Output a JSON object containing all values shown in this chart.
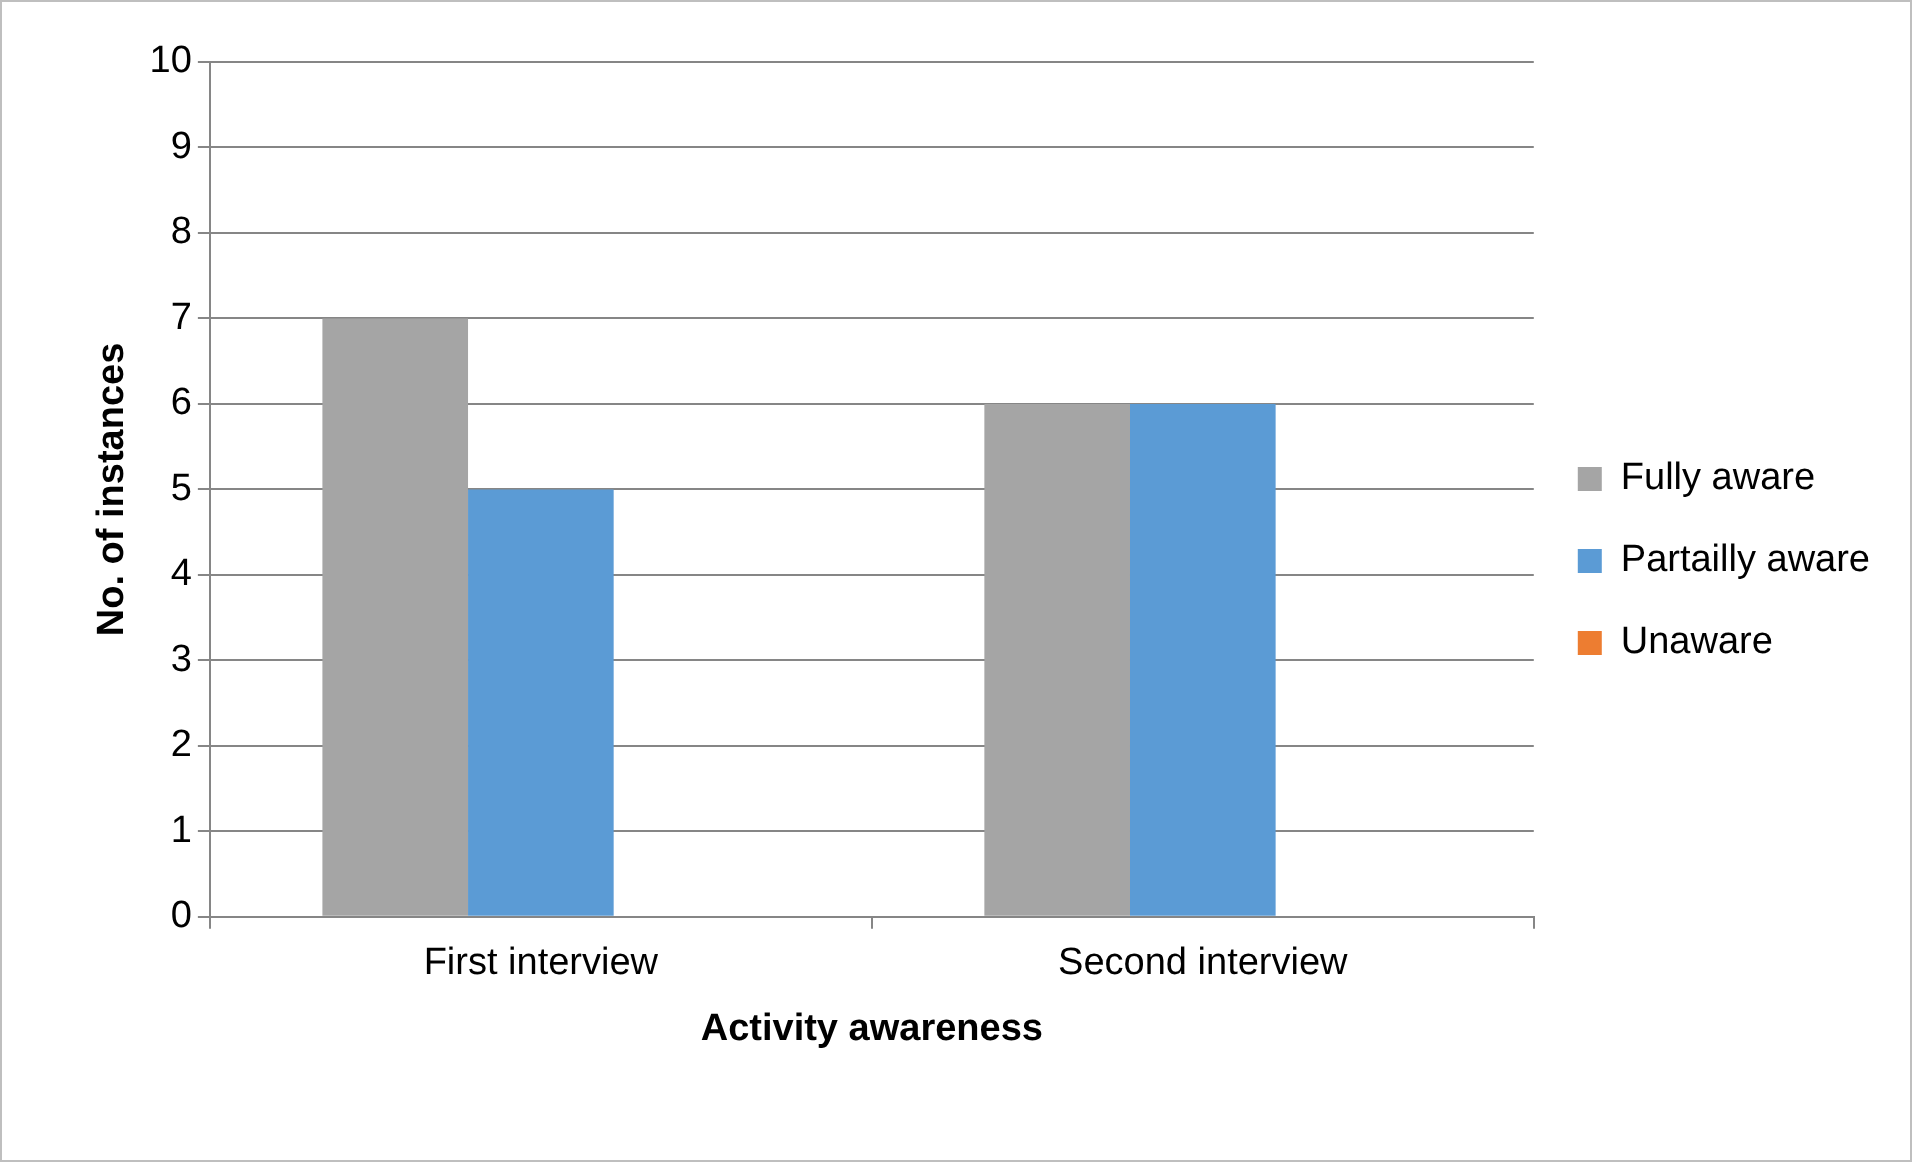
{
  "chart_data": {
    "type": "bar",
    "xlabel": "Activity awareness",
    "ylabel": "No. of instances",
    "categories": [
      "First interview",
      "Second interview"
    ],
    "series": [
      {
        "name": "Fully aware",
        "color": "#a5a5a5",
        "values": [
          7,
          6
        ]
      },
      {
        "name": "Partailly aware",
        "color": "#5b9bd5",
        "values": [
          5,
          6
        ]
      },
      {
        "name": "Unaware",
        "color": "#ed7d31",
        "values": [
          0,
          0
        ]
      }
    ],
    "ylim": [
      0,
      10
    ],
    "yticks": [
      0,
      1,
      2,
      3,
      4,
      5,
      6,
      7,
      8,
      9,
      10
    ],
    "grid": "y",
    "legend": "right"
  }
}
